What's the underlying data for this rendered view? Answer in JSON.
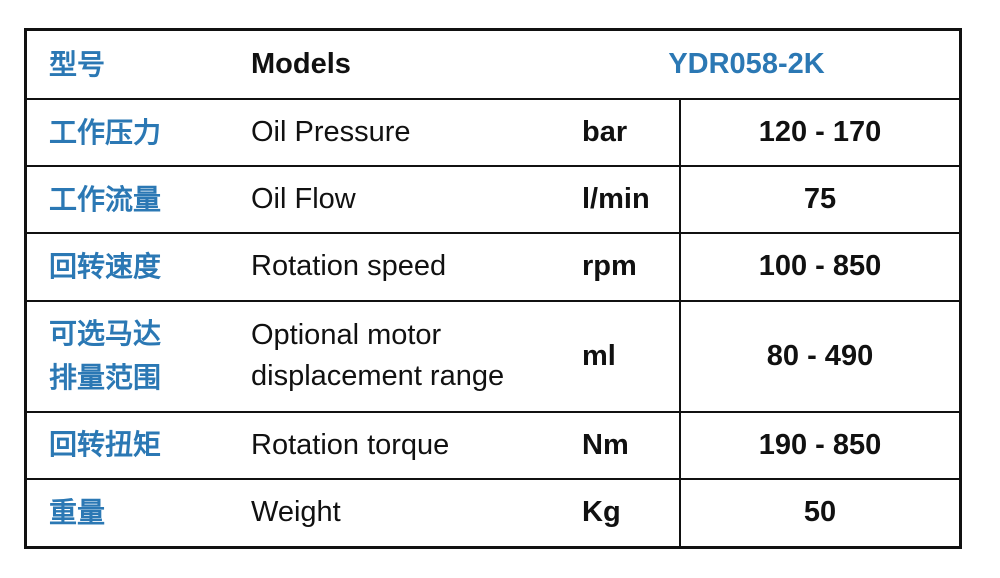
{
  "header": {
    "label_cn": "型号",
    "label_en": "Models",
    "model": "YDR058-2K"
  },
  "rows": [
    {
      "cn": "工作压力",
      "en": "Oil Pressure",
      "unit": "bar",
      "value": "120 - 170"
    },
    {
      "cn": "工作流量",
      "en": "Oil Flow",
      "unit": "l/min",
      "value": "75"
    },
    {
      "cn": "回转速度",
      "en": "Rotation speed",
      "unit": "rpm",
      "value": "100 - 850"
    },
    {
      "cn_lines": [
        "可选马达",
        "排量范围"
      ],
      "en_lines": [
        "Optional motor",
        "displacement range"
      ],
      "unit": "ml",
      "value": "80 - 490"
    },
    {
      "cn": "回转扭矩",
      "en": "Rotation torque",
      "unit": "Nm",
      "value": "190 - 850"
    },
    {
      "cn": "重量",
      "en": "Weight",
      "unit": "Kg",
      "value": "50"
    }
  ],
  "colors": {
    "accent": "#2b78b4",
    "text": "#111111",
    "border": "#111111"
  }
}
